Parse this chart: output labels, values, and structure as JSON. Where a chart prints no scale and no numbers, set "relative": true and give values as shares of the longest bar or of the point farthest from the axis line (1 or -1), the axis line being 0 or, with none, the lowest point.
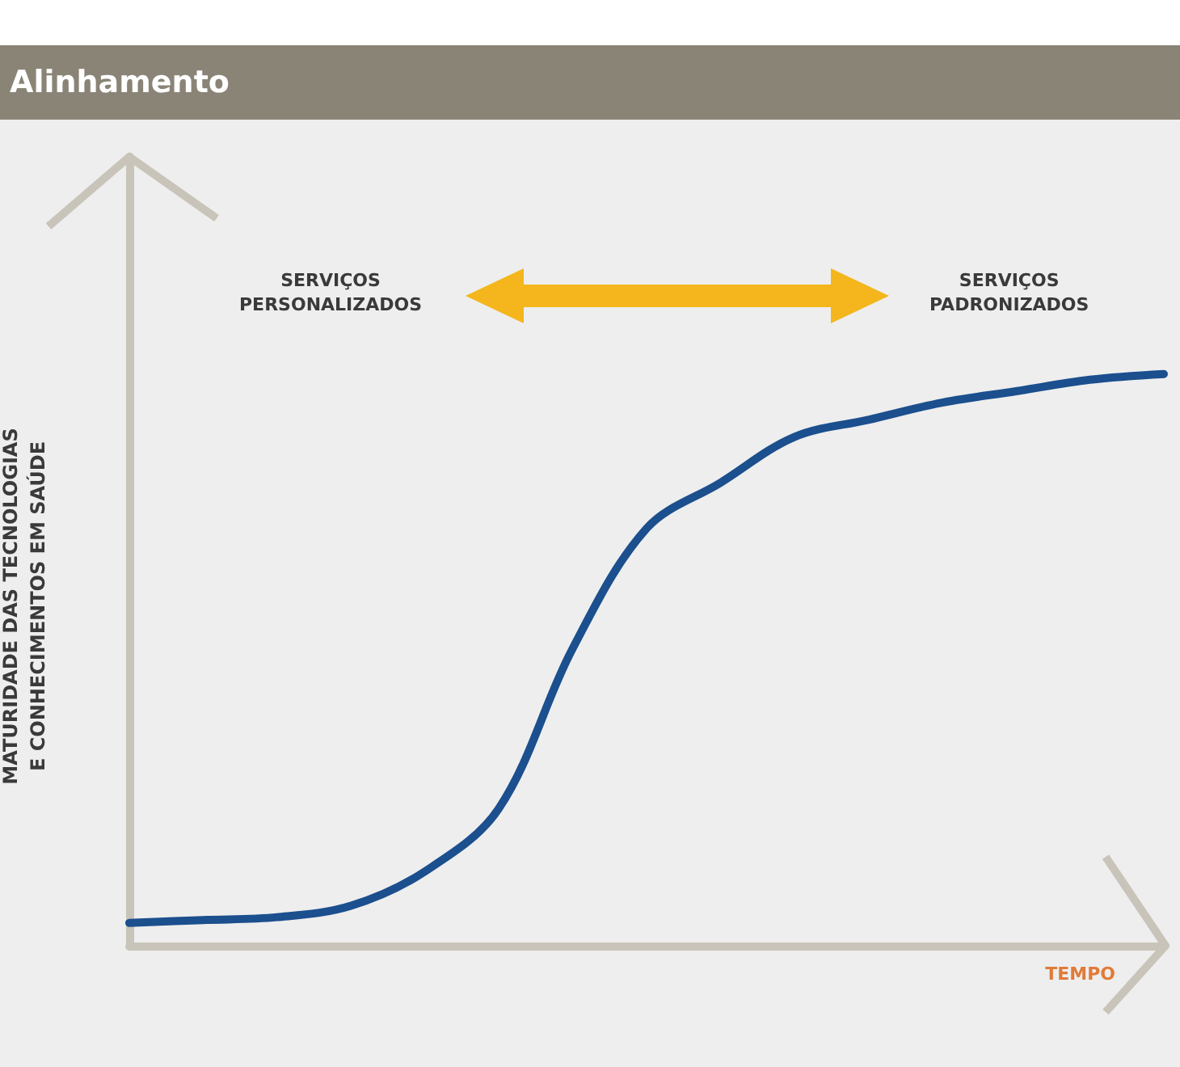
{
  "chart_data": {
    "type": "line",
    "title": "Alinhamento",
    "xlabel": "TEMPO",
    "ylabel": "MATURIDADE DAS TECNOLOGIAS\nE CONHECIMENTOS EM SAÚDE",
    "annotations": [
      "SERVIÇOS\nPERSONALIZADOS",
      "SERVIÇOS\nPADRONIZADOS"
    ],
    "relative": true,
    "grid": false,
    "marker": "none",
    "line_style": "solid",
    "categories": [
      null,
      null,
      null,
      null,
      null,
      null,
      null,
      null,
      null,
      null,
      null,
      null,
      null,
      null,
      null
    ],
    "series": [
      {
        "color": "#1b4f8e",
        "values": [
          0.04,
          0.045,
          0.05,
          0.07,
          0.13,
          0.24,
          0.52,
          0.73,
          0.81,
          0.89,
          0.92,
          0.95,
          0.97,
          0.99,
          1
        ]
      }
    ]
  }
}
